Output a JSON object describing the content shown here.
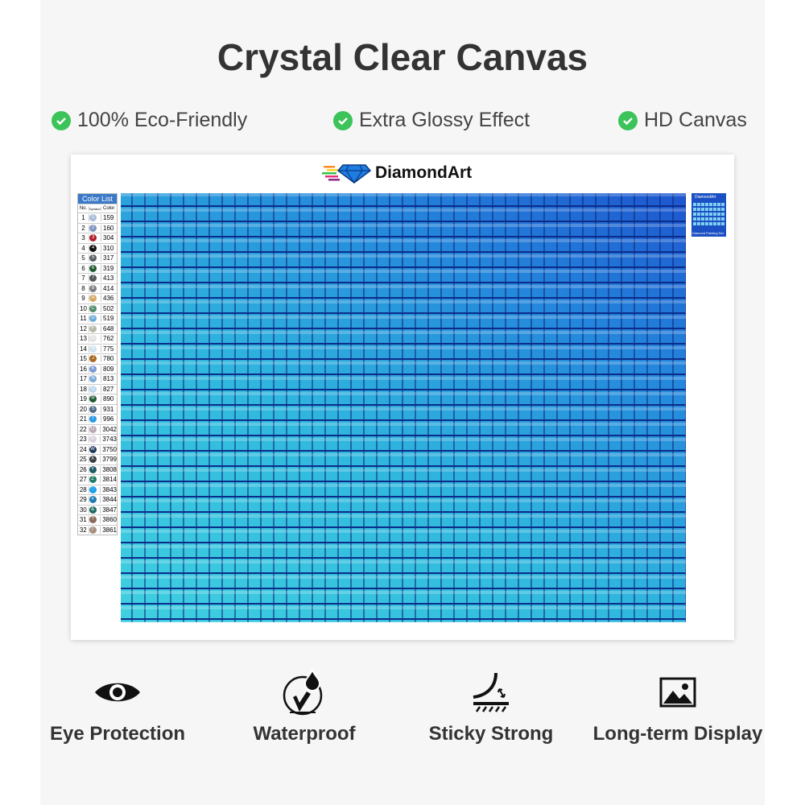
{
  "title": "Crystal Clear Canvas",
  "features": [
    {
      "label": "100% Eco-Friendly",
      "icon": "check-circle-icon"
    },
    {
      "label": "Extra Glossy Effect",
      "icon": "check-circle-icon"
    },
    {
      "label": "HD Canvas",
      "icon": "check-circle-icon"
    }
  ],
  "colors": {
    "check": "#3cc35a",
    "legend_header": "#3a78c8",
    "tile_cyan": "#3fd0e0",
    "tile_blue": "#1d55cf"
  },
  "logo": {
    "text": "DiamondArt",
    "icon": "diamond-icon"
  },
  "legend": {
    "title": "Color List",
    "headers": [
      "No.",
      "Symbol",
      "Color"
    ],
    "rows": [
      {
        "no": "1",
        "sym": "1",
        "code": "159",
        "c": "#a9bcd8"
      },
      {
        "no": "2",
        "sym": "2",
        "code": "160",
        "c": "#8094c0"
      },
      {
        "no": "3",
        "sym": "3",
        "code": "304",
        "c": "#b01e2a"
      },
      {
        "no": "4",
        "sym": "4",
        "code": "310",
        "c": "#111111"
      },
      {
        "no": "5",
        "sym": "5",
        "code": "317",
        "c": "#5a5e62"
      },
      {
        "no": "6",
        "sym": "6",
        "code": "319",
        "c": "#1f5a30"
      },
      {
        "no": "7",
        "sym": "7",
        "code": "413",
        "c": "#55595c"
      },
      {
        "no": "8",
        "sym": "8",
        "code": "414",
        "c": "#7a7e82"
      },
      {
        "no": "9",
        "sym": "A",
        "code": "436",
        "c": "#d4a860"
      },
      {
        "no": "10",
        "sym": "C",
        "code": "502",
        "c": "#4e8a6a"
      },
      {
        "no": "11",
        "sym": "D",
        "code": "519",
        "c": "#6aaad8"
      },
      {
        "no": "12",
        "sym": "F",
        "code": "648",
        "c": "#b8b8a8"
      },
      {
        "no": "13",
        "sym": "G",
        "code": "762",
        "c": "#e2e2e2"
      },
      {
        "no": "14",
        "sym": "H",
        "code": "775",
        "c": "#cfe2ee"
      },
      {
        "no": "15",
        "sym": "J",
        "code": "780",
        "c": "#a86a20"
      },
      {
        "no": "16",
        "sym": "K",
        "code": "809",
        "c": "#7898d0"
      },
      {
        "no": "17",
        "sym": "N",
        "code": "813",
        "c": "#7aa8d8"
      },
      {
        "no": "18",
        "sym": "Q",
        "code": "827",
        "c": "#b8d4ec"
      },
      {
        "no": "19",
        "sym": "R",
        "code": "890",
        "c": "#1e5a32"
      },
      {
        "no": "20",
        "sym": "S",
        "code": "931",
        "c": "#4a6a86"
      },
      {
        "no": "21",
        "sym": "T",
        "code": "996",
        "c": "#2a9ae0"
      },
      {
        "no": "22",
        "sym": "U",
        "code": "3042",
        "c": "#b8a8b4"
      },
      {
        "no": "23",
        "sym": "V",
        "code": "3743",
        "c": "#d8d0dc"
      },
      {
        "no": "24",
        "sym": "W",
        "code": "3750",
        "c": "#1e3a5a"
      },
      {
        "no": "25",
        "sym": "X",
        "code": "3799",
        "c": "#3a3e42"
      },
      {
        "no": "26",
        "sym": "Y",
        "code": "3808",
        "c": "#1e5a66"
      },
      {
        "no": "27",
        "sym": "Z",
        "code": "3814",
        "c": "#1e7a64"
      },
      {
        "no": "28",
        "sym": "♡",
        "code": "3843",
        "c": "#1aa0e8"
      },
      {
        "no": "29",
        "sym": "#",
        "code": "3844",
        "c": "#1e7ab0"
      },
      {
        "no": "30",
        "sym": "&",
        "code": "3847",
        "c": "#1e6a64"
      },
      {
        "no": "31",
        "sym": "?",
        "code": "3860",
        "c": "#8a6a5a"
      },
      {
        "no": "32",
        "sym": "/",
        "code": "3861",
        "c": "#a89080"
      }
    ]
  },
  "thumbnail": {
    "logo": "DiamondArt",
    "caption": "Diamond Painting Set"
  },
  "benefits": [
    {
      "label": "Eye Protection",
      "icon": "eye-icon"
    },
    {
      "label": "Waterproof",
      "icon": "waterproof-icon"
    },
    {
      "label": "Sticky Strong",
      "icon": "sticky-peel-icon"
    },
    {
      "label": "Long-term Display",
      "icon": "image-icon"
    }
  ]
}
